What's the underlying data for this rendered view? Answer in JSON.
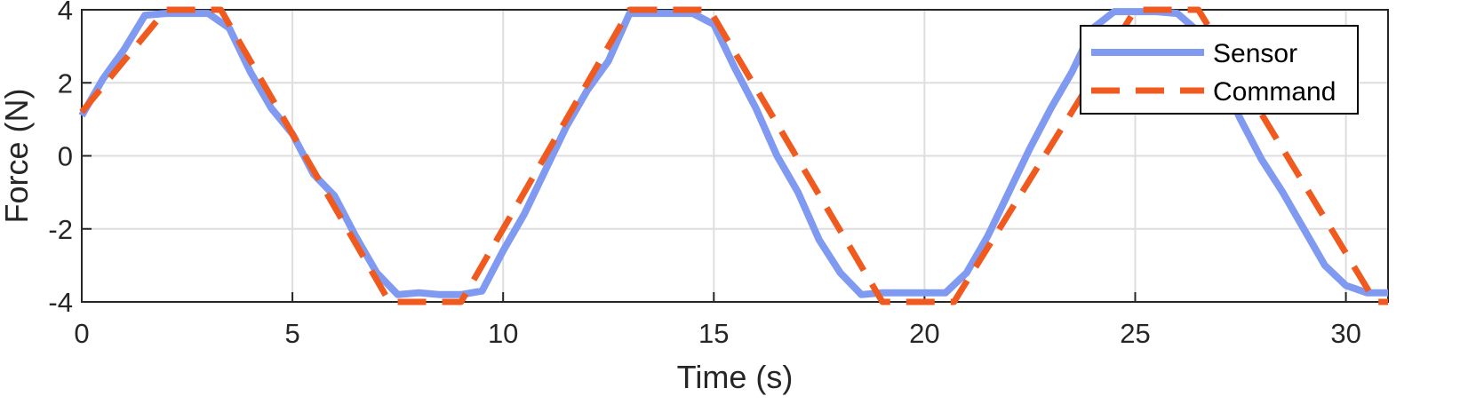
{
  "chart_data": {
    "type": "line",
    "title": "",
    "xlabel": "Time (s)",
    "ylabel": "Force (N)",
    "xlim": [
      0,
      31
    ],
    "ylim": [
      -4,
      4
    ],
    "xticks": [
      0,
      5,
      10,
      15,
      20,
      25,
      30
    ],
    "yticks": [
      -4,
      -2,
      0,
      2,
      4
    ],
    "xtick_labels": [
      "0",
      "5",
      "10",
      "15",
      "20",
      "25",
      "30"
    ],
    "ytick_labels": [
      "-4",
      "-2",
      "0",
      "2",
      "4"
    ],
    "grid": true,
    "legend_position": "top-right",
    "series": [
      {
        "name": "Sensor",
        "color": "#7f9af0",
        "style": "solid",
        "x": [
          0,
          0.5,
          1.0,
          1.5,
          2.0,
          2.5,
          3.0,
          3.5,
          4.0,
          4.5,
          5.0,
          5.5,
          6.0,
          6.5,
          7.0,
          7.5,
          8.0,
          8.5,
          9.0,
          9.5,
          10.0,
          10.5,
          11.0,
          11.5,
          12.0,
          12.5,
          13.0,
          13.5,
          14.0,
          14.5,
          15.0,
          15.5,
          16.0,
          16.5,
          17.0,
          17.5,
          18.0,
          18.5,
          19.0,
          19.5,
          20.0,
          20.5,
          21.0,
          21.5,
          22.0,
          22.5,
          23.0,
          23.5,
          24.0,
          24.5,
          25.0,
          25.5,
          26.0,
          26.5,
          27.0,
          27.5,
          28.0,
          28.5,
          29.0,
          29.5,
          30.0,
          30.5,
          31.0
        ],
        "y": [
          1.1,
          2.1,
          2.9,
          3.85,
          3.9,
          3.9,
          3.9,
          3.5,
          2.3,
          1.3,
          0.6,
          -0.5,
          -1.1,
          -2.2,
          -3.2,
          -3.8,
          -3.75,
          -3.8,
          -3.8,
          -3.7,
          -2.6,
          -1.6,
          -0.4,
          0.8,
          1.8,
          2.6,
          3.9,
          3.9,
          3.9,
          3.9,
          3.6,
          2.4,
          1.3,
          0.0,
          -1.0,
          -2.3,
          -3.2,
          -3.8,
          -3.75,
          -3.75,
          -3.75,
          -3.75,
          -3.2,
          -2.2,
          -1.0,
          0.2,
          1.3,
          2.3,
          3.5,
          3.95,
          3.95,
          3.95,
          3.9,
          3.4,
          2.2,
          1.0,
          -0.1,
          -1.0,
          -2.0,
          -3.0,
          -3.55,
          -3.75,
          -3.75
        ]
      },
      {
        "name": "Command",
        "color": "#f05a1e",
        "style": "dashed",
        "x": [
          0,
          2.0,
          3.3,
          7.3,
          9.0,
          13.0,
          14.9,
          19.0,
          20.7,
          25.0,
          26.5,
          30.7,
          31.0
        ],
        "y": [
          1.2,
          4.0,
          4.0,
          -4.0,
          -4.0,
          4.0,
          4.0,
          -4.0,
          -4.0,
          4.0,
          4.0,
          -4.0,
          -4.0
        ]
      }
    ]
  }
}
